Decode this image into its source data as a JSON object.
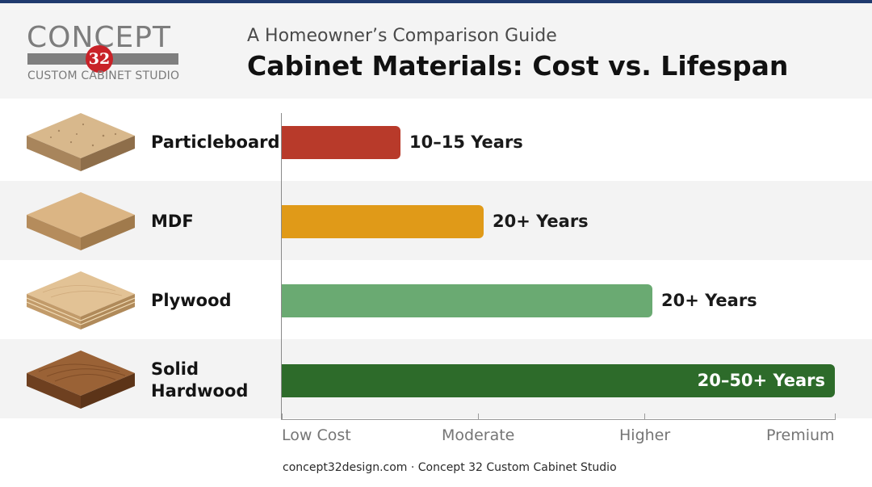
{
  "brand": {
    "logo_word": "CONCEPT",
    "logo_number": "32",
    "logo_tagline": "CUSTOM CABINET STUDIO"
  },
  "header": {
    "subtitle": "A Homeowner’s Comparison Guide",
    "title": "Cabinet Materials: Cost vs. Lifespan"
  },
  "chart_data": {
    "type": "bar",
    "orientation": "horizontal",
    "title": "Cabinet Materials: Cost vs. Lifespan",
    "subtitle": "A Homeowner’s Comparison Guide",
    "categories": [
      "Particleboard",
      "MDF",
      "Plywood",
      "Solid Hardwood"
    ],
    "values": [
      0.215,
      0.365,
      0.67,
      1.0
    ],
    "value_scale": [
      "Low Cost",
      "Moderate",
      "Higher",
      "Premium"
    ],
    "data_labels": [
      "10–15 Years",
      "20+ Years",
      "20+ Years",
      "20–50+ Years"
    ],
    "xlim": [
      0,
      1
    ],
    "x_tick_positions": [
      0,
      0.355,
      0.655,
      1.0
    ],
    "colors": [
      "#b83a2a",
      "#e09a18",
      "#6aaa72",
      "#2d6b2a"
    ],
    "label_colors": [
      "#1a1a1a",
      "#1a1a1a",
      "#1a1a1a",
      "#ffffff"
    ],
    "swatch_colors": [
      "#c8a57c",
      "#d2ac7d",
      "#dcb98b",
      "#8a5632"
    ],
    "grid": false,
    "legend": "none"
  },
  "footer": {
    "text": "concept32design.com · Concept 32 Custom Cabinet Studio"
  }
}
